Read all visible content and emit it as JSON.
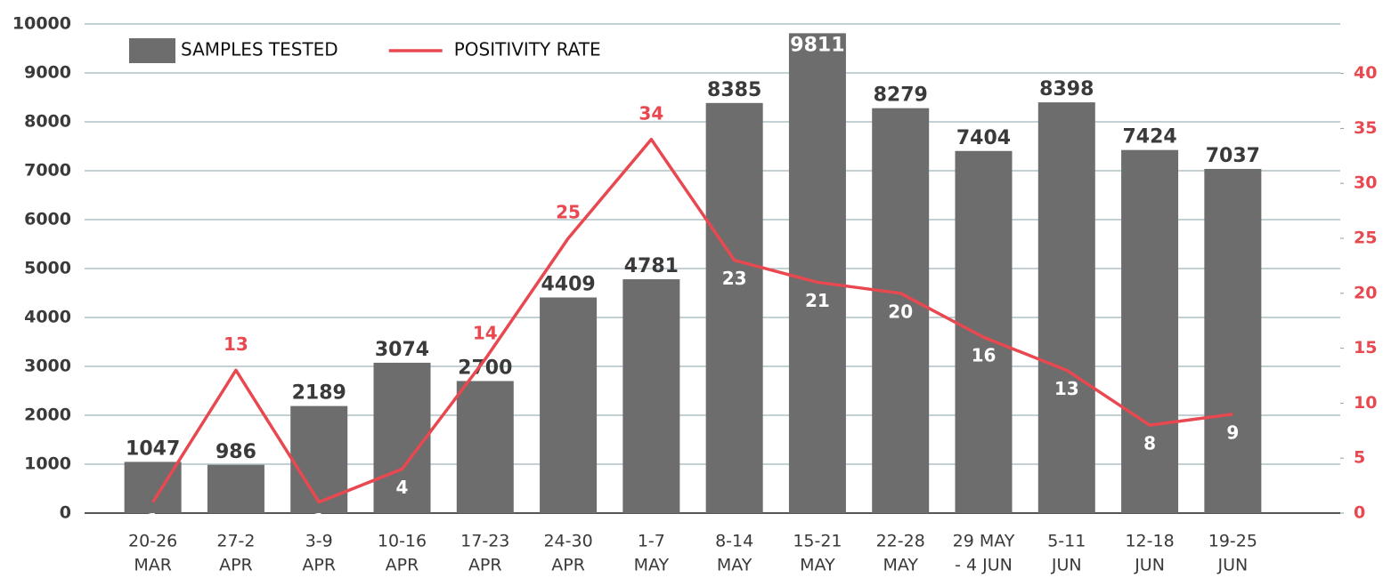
{
  "chart_data": {
    "type": "bar",
    "categories": [
      [
        "20-26",
        "MAR"
      ],
      [
        "27-2",
        "APR"
      ],
      [
        "3-9",
        "APR"
      ],
      [
        "10-16",
        "APR"
      ],
      [
        "17-23",
        "APR"
      ],
      [
        "24-30",
        "APR"
      ],
      [
        "1-7",
        "MAY"
      ],
      [
        "8-14",
        "MAY"
      ],
      [
        "15-21",
        "MAY"
      ],
      [
        "22-28",
        "MAY"
      ],
      [
        "29 MAY",
        "- 4 JUN"
      ],
      [
        "5-11",
        "JUN"
      ],
      [
        "12-18",
        "JUN"
      ],
      [
        "19-25",
        "JUN"
      ]
    ],
    "series": [
      {
        "name": "SAMPLES TESTED",
        "type": "bar",
        "color": "#6d6d6d",
        "values": [
          1047,
          986,
          2189,
          3074,
          2700,
          4409,
          4781,
          8385,
          9811,
          8279,
          7404,
          8398,
          7424,
          7037
        ]
      },
      {
        "name": "POSITIVITY RATE",
        "type": "line",
        "axis": "y2",
        "color": "#e8484f",
        "values": [
          1,
          13,
          1,
          4,
          14,
          25,
          34,
          23,
          21,
          20,
          16,
          13,
          8,
          9
        ]
      }
    ],
    "ylim": [
      0,
      10000
    ],
    "yticks": [
      0,
      1000,
      2000,
      3000,
      4000,
      5000,
      6000,
      7000,
      8000,
      9000,
      10000
    ],
    "y2lim": [
      0,
      44.5
    ],
    "y2ticks": [
      0,
      5,
      10,
      15,
      20,
      25,
      30,
      35,
      40
    ],
    "grid": true,
    "legend": "top-left"
  }
}
